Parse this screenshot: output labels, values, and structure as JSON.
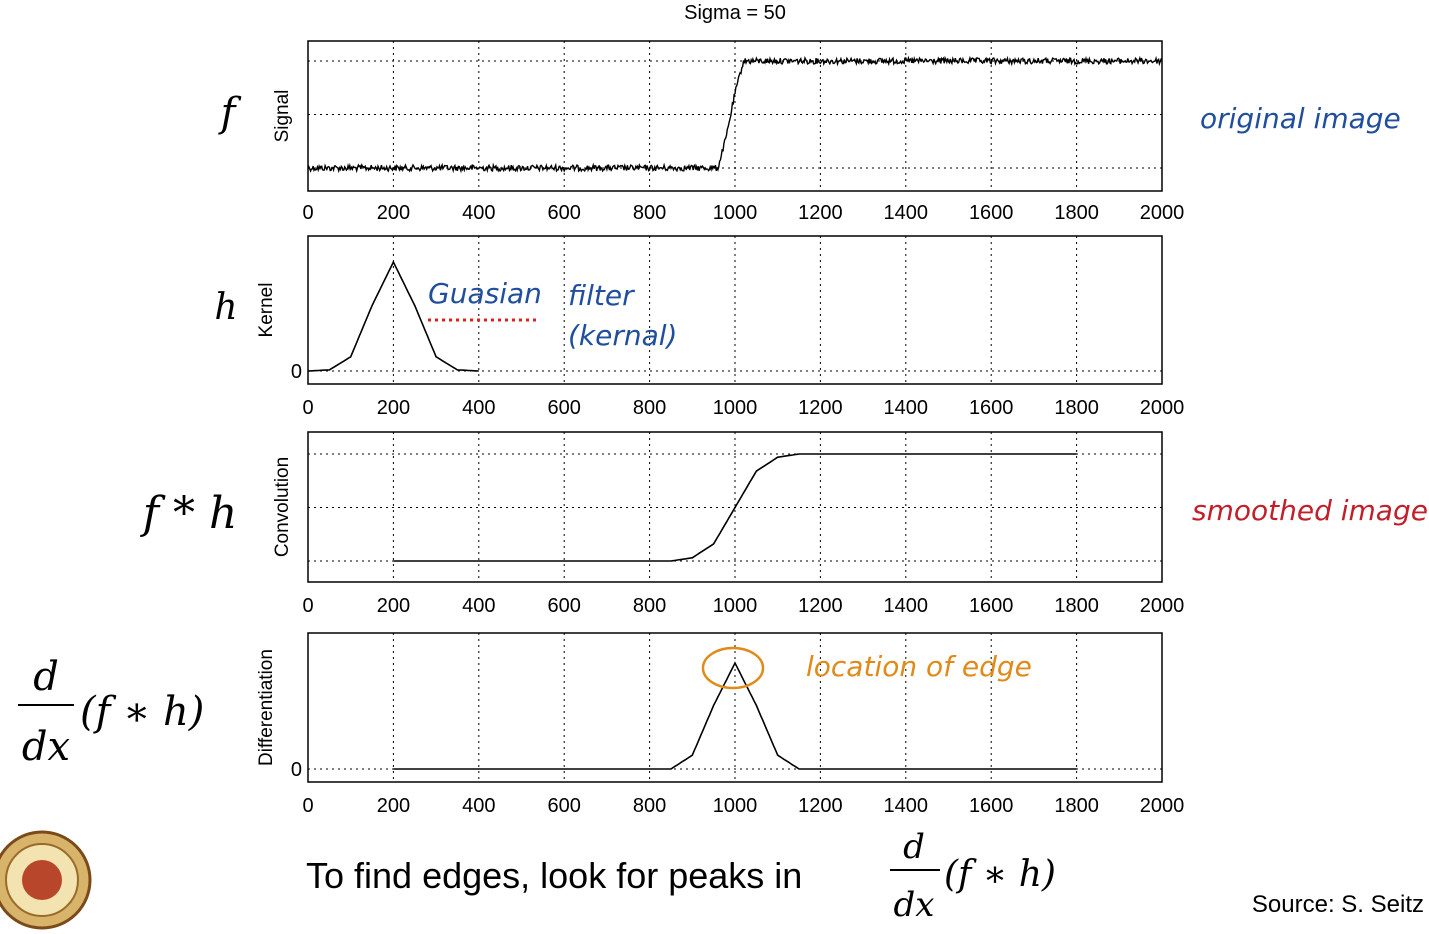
{
  "figure_title": "Sigma = 50",
  "chart_data": [
    {
      "type": "line",
      "ylabel": "Signal",
      "math_label": "f",
      "annotation": "original image",
      "xlim": [
        0,
        2000
      ],
      "xticks": [
        0,
        200,
        400,
        600,
        800,
        1000,
        1200,
        1400,
        1600,
        1800,
        2000
      ],
      "yticks": [],
      "grid": true,
      "x": [
        0,
        960,
        980,
        1000,
        1020,
        2000
      ],
      "y": [
        0.0,
        0.0,
        0.3,
        0.7,
        1.0,
        1.0
      ],
      "noisy": true
    },
    {
      "type": "line",
      "ylabel": "Kernel",
      "math_label": "h",
      "annotation": "Guasian filter (kernal)",
      "xlim": [
        0,
        2000
      ],
      "xticks": [
        0,
        200,
        400,
        600,
        800,
        1000,
        1200,
        1400,
        1600,
        1800,
        2000
      ],
      "yticks": [
        "0"
      ],
      "grid": true,
      "x": [
        0,
        50,
        100,
        150,
        200,
        250,
        300,
        350,
        400
      ],
      "y": [
        0.0,
        0.01,
        0.13,
        0.6,
        1.0,
        0.6,
        0.13,
        0.01,
        0.0
      ]
    },
    {
      "type": "line",
      "ylabel": "Convolution",
      "math_label": "f * h",
      "annotation": "smoothed image",
      "xlim": [
        0,
        2000
      ],
      "xticks": [
        0,
        200,
        400,
        600,
        800,
        1000,
        1200,
        1400,
        1600,
        1800,
        2000
      ],
      "yticks": [],
      "grid": true,
      "x": [
        200,
        850,
        900,
        950,
        1000,
        1050,
        1100,
        1150,
        1800
      ],
      "y": [
        0.0,
        0.0,
        0.03,
        0.16,
        0.5,
        0.84,
        0.97,
        1.0,
        1.0
      ]
    },
    {
      "type": "line",
      "ylabel": "Differentiation",
      "math_label": "d/dx (f * h)",
      "annotation": "location of edge",
      "xlim": [
        0,
        2000
      ],
      "xticks": [
        0,
        200,
        400,
        600,
        800,
        1000,
        1200,
        1400,
        1600,
        1800,
        2000
      ],
      "yticks": [
        "0"
      ],
      "grid": true,
      "x": [
        200,
        850,
        900,
        950,
        1000,
        1050,
        1100,
        1150,
        1800
      ],
      "y": [
        0.0,
        0.0,
        0.13,
        0.6,
        1.0,
        0.6,
        0.13,
        0.0,
        0.0
      ]
    }
  ],
  "caption": "To find edges, look for peaks in",
  "caption_math": "d/dx (f * h)",
  "source": "Source: S. Seitz",
  "colors": {
    "annotation_blue": "#1f4e9c",
    "annotation_red": "#c0202a",
    "annotation_orange": "#e08a1a",
    "underline_red": "#e02020"
  }
}
